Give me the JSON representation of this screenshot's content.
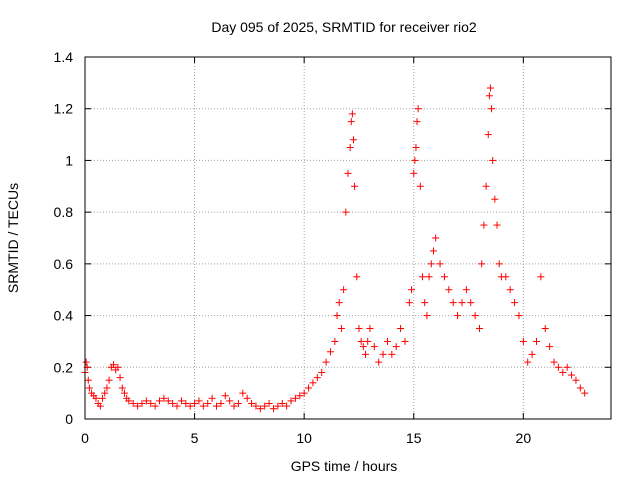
{
  "chart_data": {
    "type": "scatter",
    "title": "Day 095 of 2025, SRMTID for receiver rio2",
    "xlabel": "GPS time / hours",
    "ylabel": "SRMTID / TECUs",
    "xlim": [
      0,
      24
    ],
    "ylim": [
      0,
      1.4
    ],
    "xticks": [
      0,
      5,
      10,
      15,
      20
    ],
    "yticks": [
      0,
      0.2,
      0.4,
      0.6,
      0.8,
      1.0,
      1.2,
      1.4
    ],
    "xtick_labels": [
      "0",
      "5",
      "10",
      "15",
      "20"
    ],
    "ytick_labels": [
      "0",
      "0.2",
      "0.4",
      "0.6",
      "0.8",
      "1",
      "1.2",
      "1.4"
    ],
    "grid": true,
    "marker": "+",
    "marker_color": "#ff0000",
    "series": [
      {
        "name": "rio2 SRMTID",
        "x": [
          0.0,
          0.05,
          0.1,
          0.15,
          0.2,
          0.3,
          0.4,
          0.5,
          0.6,
          0.7,
          0.8,
          0.9,
          1.0,
          1.1,
          1.2,
          1.3,
          1.4,
          1.5,
          1.6,
          1.7,
          1.8,
          1.9,
          2.0,
          2.2,
          2.4,
          2.6,
          2.8,
          3.0,
          3.2,
          3.4,
          3.6,
          3.8,
          4.0,
          4.2,
          4.4,
          4.6,
          4.8,
          5.0,
          5.2,
          5.4,
          5.6,
          5.8,
          6.0,
          6.2,
          6.4,
          6.6,
          6.8,
          7.0,
          7.2,
          7.4,
          7.6,
          7.8,
          8.0,
          8.2,
          8.4,
          8.6,
          8.8,
          9.0,
          9.2,
          9.4,
          9.6,
          9.8,
          10.0,
          10.2,
          10.4,
          10.6,
          10.8,
          11.0,
          11.2,
          11.4,
          11.5,
          11.6,
          11.7,
          11.8,
          11.9,
          12.0,
          12.1,
          12.15,
          12.2,
          12.25,
          12.3,
          12.4,
          12.5,
          12.6,
          12.7,
          12.8,
          12.9,
          13.0,
          13.2,
          13.4,
          13.6,
          13.8,
          14.0,
          14.2,
          14.4,
          14.6,
          14.8,
          14.9,
          15.0,
          15.05,
          15.1,
          15.15,
          15.2,
          15.3,
          15.4,
          15.5,
          15.6,
          15.7,
          15.8,
          15.9,
          16.0,
          16.2,
          16.4,
          16.6,
          16.8,
          17.0,
          17.2,
          17.4,
          17.6,
          17.8,
          18.0,
          18.1,
          18.2,
          18.3,
          18.4,
          18.45,
          18.5,
          18.55,
          18.6,
          18.7,
          18.8,
          18.9,
          19.0,
          19.2,
          19.4,
          19.6,
          19.8,
          20.0,
          20.2,
          20.4,
          20.6,
          20.8,
          21.0,
          21.2,
          21.4,
          21.6,
          21.8,
          22.0,
          22.2,
          22.4,
          22.6,
          22.8
        ],
        "y": [
          0.18,
          0.22,
          0.2,
          0.15,
          0.12,
          0.1,
          0.09,
          0.08,
          0.06,
          0.05,
          0.08,
          0.1,
          0.12,
          0.15,
          0.2,
          0.21,
          0.19,
          0.2,
          0.16,
          0.12,
          0.1,
          0.08,
          0.07,
          0.06,
          0.05,
          0.06,
          0.07,
          0.06,
          0.05,
          0.07,
          0.08,
          0.07,
          0.06,
          0.05,
          0.07,
          0.06,
          0.05,
          0.06,
          0.07,
          0.05,
          0.06,
          0.08,
          0.05,
          0.06,
          0.09,
          0.07,
          0.05,
          0.06,
          0.1,
          0.08,
          0.06,
          0.05,
          0.04,
          0.05,
          0.06,
          0.04,
          0.05,
          0.06,
          0.05,
          0.07,
          0.08,
          0.09,
          0.1,
          0.12,
          0.14,
          0.16,
          0.18,
          0.22,
          0.26,
          0.3,
          0.4,
          0.45,
          0.35,
          0.5,
          0.8,
          0.95,
          1.05,
          1.15,
          1.18,
          1.08,
          0.9,
          0.55,
          0.35,
          0.3,
          0.28,
          0.25,
          0.3,
          0.35,
          0.28,
          0.22,
          0.25,
          0.3,
          0.25,
          0.28,
          0.35,
          0.3,
          0.45,
          0.5,
          0.95,
          1.0,
          1.05,
          1.15,
          1.2,
          0.9,
          0.55,
          0.45,
          0.4,
          0.55,
          0.6,
          0.65,
          0.7,
          0.6,
          0.55,
          0.5,
          0.45,
          0.4,
          0.45,
          0.5,
          0.45,
          0.4,
          0.35,
          0.6,
          0.75,
          0.9,
          1.1,
          1.25,
          1.28,
          1.2,
          1.0,
          0.85,
          0.75,
          0.6,
          0.55,
          0.55,
          0.5,
          0.45,
          0.4,
          0.3,
          0.22,
          0.25,
          0.3,
          0.55,
          0.35,
          0.28,
          0.22,
          0.2,
          0.18,
          0.2,
          0.17,
          0.15,
          0.12,
          0.1
        ]
      }
    ]
  }
}
